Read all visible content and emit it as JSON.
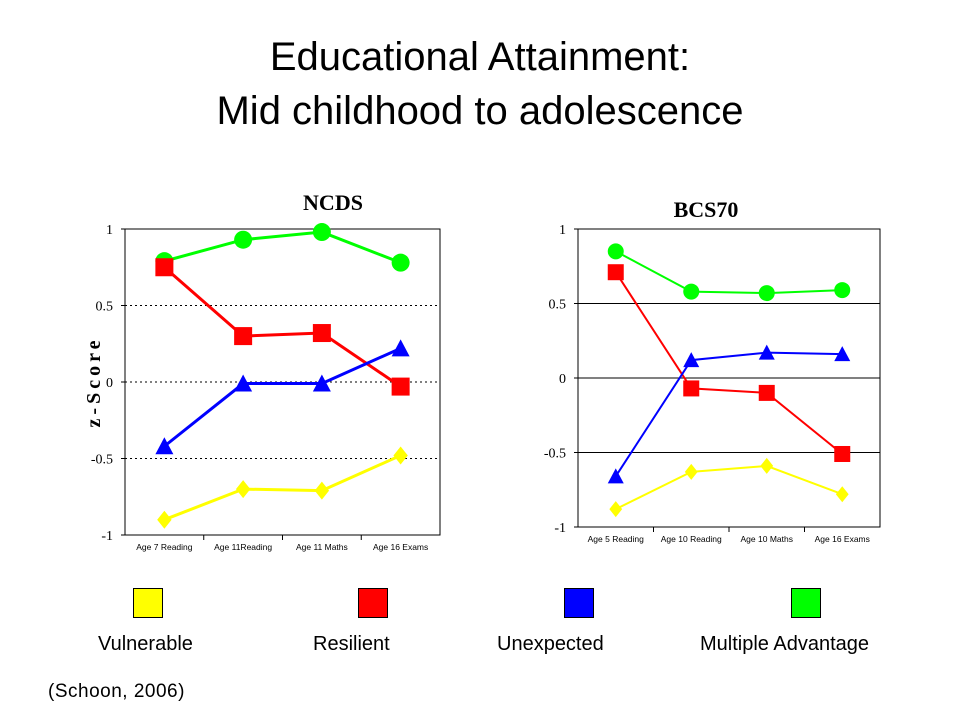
{
  "slide": {
    "title_line1": "Educational Attainment:",
    "title_line2": "Mid childhood to adolescence",
    "citation": "(Schoon, 2006)"
  },
  "legend": [
    {
      "name": "Vulnerable",
      "color": "#ffff00"
    },
    {
      "name": "Resilient",
      "color": "#ff0000"
    },
    {
      "name": "Unexpected",
      "color": "#0000ff"
    },
    {
      "name": "Multiple Advantage",
      "color": "#00ff00"
    }
  ],
  "chart_data": [
    {
      "type": "line",
      "title": "NCDS",
      "ylabel": "z-Score",
      "xlabel": "",
      "categories": [
        "Age 7 Reading",
        "Age 11Reading",
        "Age 11 Maths",
        "Age 16 Exams"
      ],
      "ylim": [
        -1,
        1
      ],
      "yticks": [
        "-1",
        "-0.5",
        "0",
        "0.5",
        "1"
      ],
      "grid": "horizontal dotted",
      "series": [
        {
          "name": "Multiple Advantage",
          "color": "#00ff00",
          "marker": "circle",
          "values": [
            0.79,
            0.93,
            0.98,
            0.78
          ]
        },
        {
          "name": "Resilient",
          "color": "#ff0000",
          "marker": "square",
          "values": [
            0.75,
            0.3,
            0.32,
            -0.03
          ]
        },
        {
          "name": "Unexpected",
          "color": "#0000ff",
          "marker": "triangle",
          "values": [
            -0.42,
            -0.01,
            -0.01,
            0.22
          ]
        },
        {
          "name": "Vulnerable",
          "color": "#ffff00",
          "marker": "diamond",
          "values": [
            -0.9,
            -0.7,
            -0.71,
            -0.48
          ]
        }
      ]
    },
    {
      "type": "line",
      "title": "BCS70",
      "ylabel": "",
      "xlabel": "",
      "categories": [
        "Age 5 Reading",
        "Age 10 Reading",
        "Age 10 Maths",
        "Age 16 Exams"
      ],
      "ylim": [
        -1,
        1
      ],
      "yticks": [
        "-1",
        "-0.5",
        "0",
        "0.5",
        "1"
      ],
      "grid": "horizontal solid",
      "series": [
        {
          "name": "Multiple Advantage",
          "color": "#00ff00",
          "marker": "circle",
          "values": [
            0.85,
            0.58,
            0.57,
            0.59
          ]
        },
        {
          "name": "Resilient",
          "color": "#ff0000",
          "marker": "square",
          "values": [
            0.71,
            -0.07,
            -0.1,
            -0.51
          ]
        },
        {
          "name": "Unexpected",
          "color": "#0000ff",
          "marker": "triangle",
          "values": [
            -0.66,
            0.12,
            0.17,
            0.16
          ]
        },
        {
          "name": "Vulnerable",
          "color": "#ffff00",
          "marker": "diamond",
          "values": [
            -0.88,
            -0.63,
            -0.59,
            -0.78
          ]
        }
      ]
    }
  ]
}
